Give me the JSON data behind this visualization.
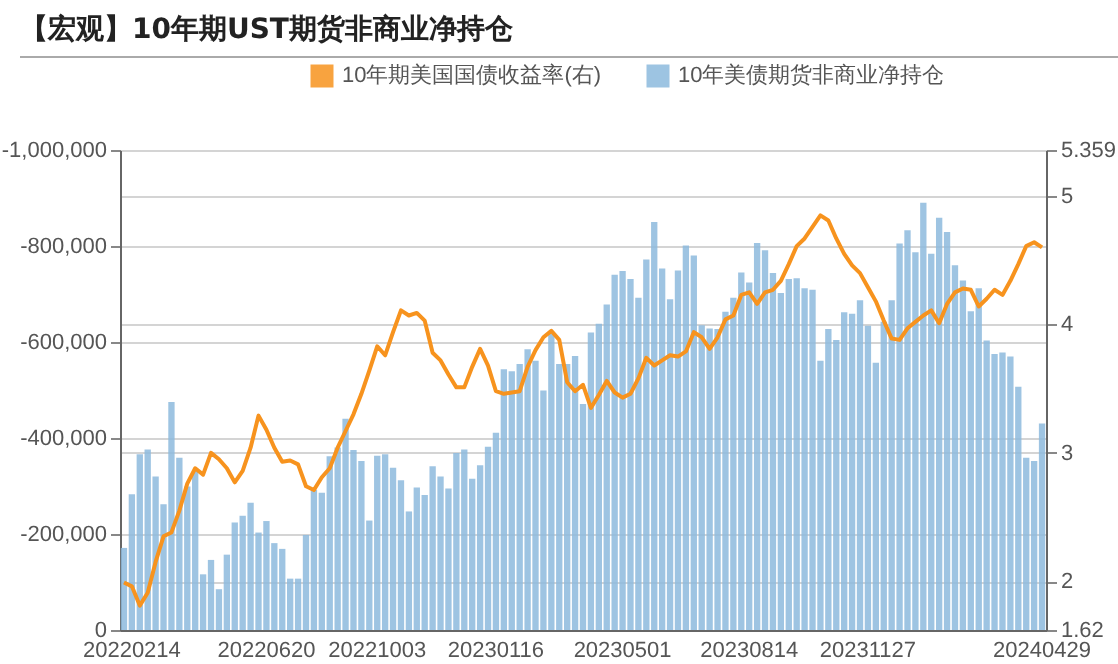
{
  "chart_data": {
    "type": "bar",
    "title": "【宏观】10年期UST期货非商业净持仓",
    "categories": [
      null,
      "20220214",
      null,
      null,
      null,
      null,
      null,
      null,
      null,
      null,
      null,
      null,
      null,
      null,
      null,
      null,
      null,
      null,
      "20220620",
      null,
      null,
      null,
      null,
      null,
      null,
      null,
      null,
      null,
      null,
      null,
      null,
      null,
      "20221003",
      null,
      null,
      null,
      null,
      null,
      null,
      null,
      null,
      null,
      null,
      null,
      null,
      null,
      null,
      "20230116",
      null,
      null,
      null,
      null,
      null,
      null,
      null,
      null,
      null,
      null,
      null,
      null,
      null,
      null,
      null,
      "20230501",
      null,
      null,
      null,
      null,
      null,
      null,
      null,
      null,
      null,
      null,
      null,
      null,
      null,
      null,
      null,
      "20230814",
      null,
      null,
      null,
      null,
      null,
      null,
      null,
      null,
      null,
      null,
      null,
      null,
      null,
      null,
      "20231127",
      null,
      null,
      null,
      null,
      null,
      null,
      null,
      null,
      null,
      null,
      null,
      null,
      null,
      null,
      null,
      null,
      null,
      null,
      null,
      null,
      null,
      "20240429"
    ],
    "series": [
      {
        "name": "10年期美国国债收益率(右)",
        "type": "line",
        "axis": "y2",
        "color": "#f7931e",
        "values": [
          1.99,
          1.96,
          1.81,
          1.91,
          2.15,
          2.35,
          2.38,
          2.55,
          2.76,
          2.88,
          2.83,
          3.0,
          2.95,
          2.88,
          2.77,
          2.86,
          3.04,
          3.29,
          3.18,
          3.04,
          2.93,
          2.94,
          2.91,
          2.74,
          2.71,
          2.81,
          2.88,
          3.04,
          3.17,
          3.3,
          3.46,
          3.64,
          3.83,
          3.76,
          3.94,
          4.11,
          4.07,
          4.09,
          4.03,
          3.78,
          3.72,
          3.61,
          3.51,
          3.51,
          3.67,
          3.81,
          3.68,
          3.48,
          3.46,
          3.47,
          3.48,
          3.67,
          3.8,
          3.9,
          3.95,
          3.88,
          3.55,
          3.48,
          3.53,
          3.35,
          3.45,
          3.56,
          3.47,
          3.43,
          3.46,
          3.58,
          3.74,
          3.68,
          3.72,
          3.76,
          3.75,
          3.79,
          3.94,
          3.9,
          3.81,
          3.9,
          4.04,
          4.07,
          4.23,
          4.25,
          4.16,
          4.25,
          4.27,
          4.34,
          4.47,
          4.61,
          4.67,
          4.76,
          4.85,
          4.81,
          4.67,
          4.55,
          4.46,
          4.4,
          4.29,
          4.18,
          4.03,
          3.89,
          3.88,
          3.97,
          4.02,
          4.07,
          4.11,
          4.01,
          4.16,
          4.25,
          4.28,
          4.27,
          4.14,
          4.2,
          4.27,
          4.23,
          4.34,
          4.47,
          4.61,
          4.64,
          4.6
        ]
      },
      {
        "name": "10年美债期货非商业净持仓",
        "color": "#8dbadd",
        "values": [
          -171000,
          -283000,
          -366000,
          -376000,
          -320000,
          -262000,
          -475000,
          -359000,
          -299000,
          -331000,
          -116000,
          -146000,
          -85000,
          -157000,
          -224000,
          -238000,
          -265000,
          -203000,
          -227000,
          -181000,
          -169000,
          -107000,
          -107000,
          -198000,
          -292000,
          -286000,
          -362000,
          -380000,
          -440000,
          -375000,
          -352000,
          -228000,
          -363000,
          -366000,
          -338000,
          -312000,
          -247000,
          -297000,
          -281000,
          -341000,
          -320000,
          -295000,
          -369000,
          -376000,
          -315000,
          -343000,
          -382000,
          -411000,
          -543000,
          -539000,
          -554000,
          -585000,
          -561000,
          -499000,
          -620000,
          -554000,
          -554000,
          -571000,
          -471000,
          -620000,
          -638000,
          -678000,
          -740000,
          -748000,
          -731000,
          -692000,
          -772000,
          -850000,
          -753000,
          -689000,
          -749000,
          -801000,
          -780000,
          -635000,
          -628000,
          -627000,
          -663000,
          -692000,
          -745000,
          -724000,
          -806000,
          -791000,
          -744000,
          -702000,
          -731000,
          -733000,
          -712000,
          -709000,
          -561000,
          -627000,
          -604000,
          -662000,
          -659000,
          -687000,
          -634000,
          -557000,
          -642000,
          -687000,
          -805000,
          -833000,
          -787000,
          -890000,
          -784000,
          -859000,
          -829000,
          -760000,
          -728000,
          -664000,
          -712000,
          -603000,
          -575000,
          -578000,
          -570000,
          -507000,
          -359000,
          -352000,
          -430000
        ]
      }
    ],
    "ylim": [
      0,
      -1000000
    ],
    "yticks": [
      0,
      {
        "value": -200000,
        "label": "-200,000"
      },
      {
        "value": -400000,
        "label": "-400,000"
      },
      {
        "value": -600000,
        "label": "-600,000"
      },
      {
        "value": -800000,
        "label": "-800,000"
      },
      {
        "value": -1000000,
        "label": "-1,000,000"
      }
    ],
    "y2lim": [
      1.62,
      5.359
    ],
    "y2ticks": [
      1.62,
      2,
      3,
      4,
      5,
      5.359
    ],
    "grid": true,
    "legend": "top"
  }
}
